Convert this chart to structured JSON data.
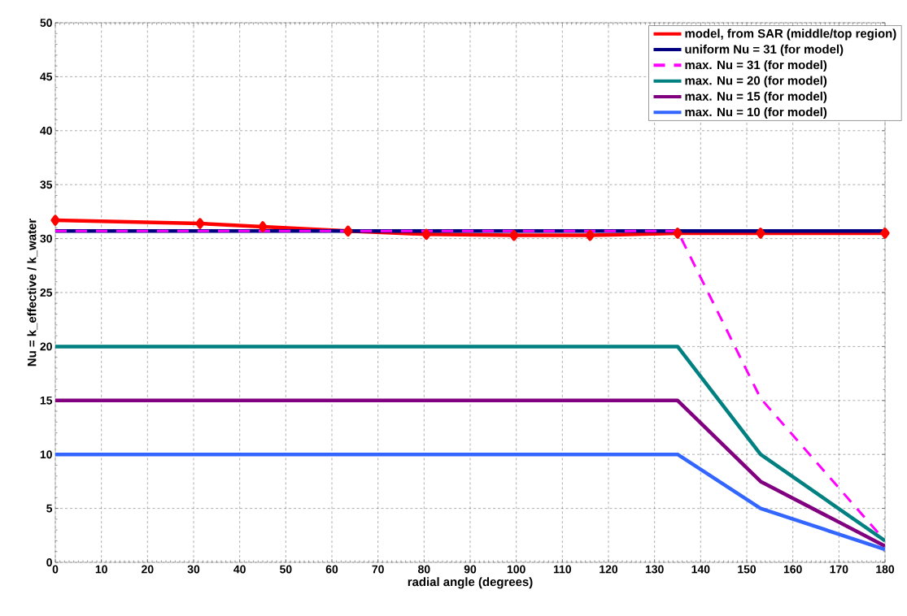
{
  "chart_data": {
    "type": "line",
    "xlabel": "radial angle (degrees)",
    "ylabel": "Nu = k_effective / k_water",
    "xlim": [
      0,
      180
    ],
    "xticks": [
      0,
      10,
      20,
      30,
      40,
      50,
      60,
      70,
      80,
      90,
      100,
      110,
      120,
      130,
      140,
      150,
      160,
      170,
      180
    ],
    "ylim": [
      0,
      50
    ],
    "yticks": [
      0,
      5,
      10,
      15,
      20,
      25,
      30,
      35,
      40,
      45,
      50
    ],
    "grid": true,
    "legend": "top right",
    "series": [
      {
        "name": "model, from SAR (middle/top region)",
        "color": "#ff0000",
        "marker": "diamond",
        "line_style": "solid",
        "x": [
          0,
          31.4,
          45,
          63.5,
          80.5,
          99.5,
          116,
          135,
          153,
          180
        ],
        "values": [
          31.7,
          31.4,
          31.1,
          30.7,
          30.4,
          30.3,
          30.3,
          30.5,
          30.5,
          30.5
        ]
      },
      {
        "name": "uniform Nu = 31 (for model)",
        "color": "#000080",
        "line_style": "solid",
        "x": [
          0,
          180
        ],
        "values": [
          30.7,
          30.7
        ]
      },
      {
        "name": "max. Nu = 31 (for model)",
        "color": "#ff00ff",
        "line_style": "dashed",
        "x": [
          0,
          135,
          153,
          180
        ],
        "values": [
          30.7,
          30.7,
          15.2,
          2
        ]
      },
      {
        "name": "max. Nu = 20  (for model)",
        "color": "#008080",
        "line_style": "solid",
        "x": [
          0,
          135,
          153,
          180
        ],
        "values": [
          20,
          20,
          10,
          2
        ]
      },
      {
        "name": "max. Nu = 15  (for model)",
        "color": "#800080",
        "line_style": "solid",
        "x": [
          0,
          135,
          153,
          180
        ],
        "values": [
          15,
          15,
          7.5,
          1.5
        ]
      },
      {
        "name": "max. Nu = 10  (for model)",
        "color": "#3366ff",
        "line_style": "solid",
        "x": [
          0,
          135,
          153,
          180
        ],
        "values": [
          10,
          10,
          5,
          1.2
        ]
      }
    ]
  }
}
